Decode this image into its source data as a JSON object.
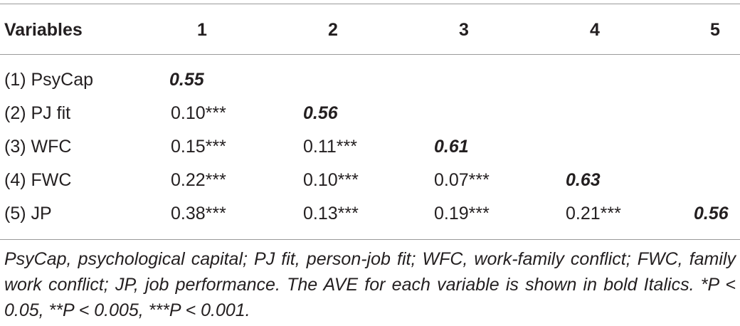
{
  "table": {
    "header": {
      "variables_label": "Variables",
      "columns": [
        "1",
        "2",
        "3",
        "4",
        "5"
      ]
    },
    "rows": [
      {
        "label": "(1) PsyCap",
        "values": [
          "0.55",
          "",
          "",
          "",
          ""
        ]
      },
      {
        "label": "(2) PJ fit",
        "values": [
          "0.10***",
          "0.56",
          "",
          "",
          ""
        ]
      },
      {
        "label": "(3) WFC",
        "values": [
          "0.15***",
          "0.11***",
          "0.61",
          "",
          ""
        ]
      },
      {
        "label": "(4) FWC",
        "values": [
          "0.22***",
          "0.10***",
          "0.07***",
          "0.63",
          ""
        ]
      },
      {
        "label": "(5) JP",
        "values": [
          "0.38***",
          "0.13***",
          "0.19***",
          "0.21***",
          "0.56"
        ]
      }
    ],
    "footnote": "PsyCap, psychological capital; PJ fit, person-job fit; WFC, work-family conflict; FWC, family work conflict; JP, job performance. The AVE for each variable is shown in bold Italics. *P < 0.05, **P < 0.005, ***P < 0.001."
  }
}
